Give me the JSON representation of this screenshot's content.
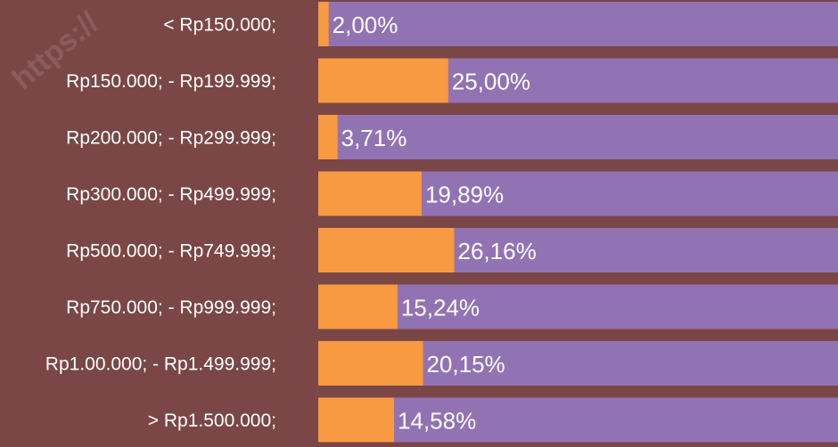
{
  "chart_data": {
    "type": "barh",
    "watermark": "https://",
    "categories": [
      "< Rp150.000;",
      "Rp150.000; - Rp199.999;",
      "Rp200.000; - Rp299.999;",
      "Rp300.000; - Rp499.999;",
      "Rp500.000; - Rp749.999;",
      "Rp750.000; - Rp999.999;",
      "Rp1.00.000; - Rp1.499.999;",
      "> Rp1.500.000;"
    ],
    "values": [
      2.0,
      25.0,
      3.71,
      19.89,
      26.16,
      15.24,
      20.15,
      14.58
    ],
    "value_labels": [
      "2,00%",
      "25,00%",
      "3,71%",
      "19,89%",
      "26,16%",
      "15,24%",
      "20,15%",
      "14,58%"
    ],
    "xlim": [
      0,
      100
    ],
    "color": "#f79a42",
    "track_color": "#9173b4"
  }
}
